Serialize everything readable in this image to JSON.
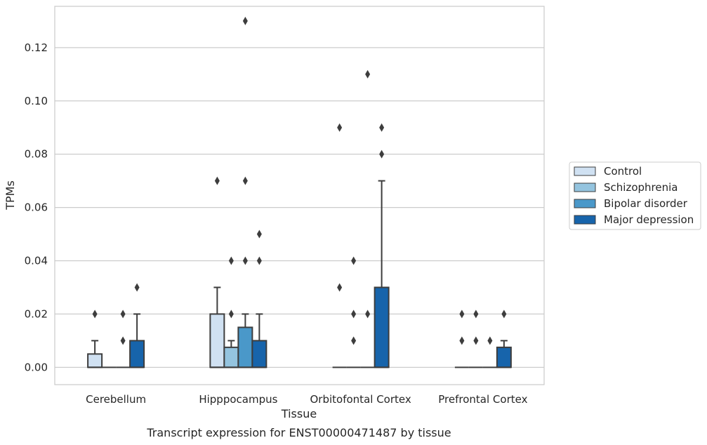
{
  "chart_data": {
    "type": "box",
    "xlabel": "Tissue",
    "ylabel": "TPMs",
    "caption": "Transcript expression for ENST00000471487 by tissue",
    "ylim": [
      -0.0065,
      0.1355
    ],
    "yticks": [
      "0.00",
      "0.02",
      "0.04",
      "0.06",
      "0.08",
      "0.10",
      "0.12"
    ],
    "ytick_values": [
      0,
      0.02,
      0.04,
      0.06,
      0.08,
      0.1,
      0.12
    ],
    "grid": true,
    "legend_position": "right",
    "categories": [
      "Cerebellum",
      "Hipppocampus",
      "Orbitofontal Cortex",
      "Prefrontal Cortex"
    ],
    "series": [
      {
        "name": "Control",
        "color": "#d0e1f2",
        "boxes": [
          {
            "q1": 0,
            "median": 0,
            "q3": 0.005,
            "whisker_low": 0,
            "whisker_high": 0.01,
            "outliers": [
              0.02
            ]
          },
          {
            "q1": 0,
            "median": 0,
            "q3": 0.02,
            "whisker_low": 0,
            "whisker_high": 0.03,
            "outliers": [
              0.07
            ]
          },
          {
            "q1": 0,
            "median": 0,
            "q3": 0,
            "whisker_low": 0,
            "whisker_high": 0,
            "outliers": [
              0.09,
              0.03
            ]
          },
          {
            "q1": 0,
            "median": 0,
            "q3": 0,
            "whisker_low": 0,
            "whisker_high": 0,
            "outliers": [
              0.02,
              0.01
            ]
          }
        ]
      },
      {
        "name": "Schizophrenia",
        "color": "#94c4df",
        "boxes": [
          {
            "q1": 0,
            "median": 0,
            "q3": 0,
            "whisker_low": 0,
            "whisker_high": 0,
            "outliers": []
          },
          {
            "q1": 0,
            "median": 0,
            "q3": 0.0075,
            "whisker_low": 0,
            "whisker_high": 0.01,
            "outliers": [
              0.04,
              0.02
            ]
          },
          {
            "q1": 0,
            "median": 0,
            "q3": 0,
            "whisker_low": 0,
            "whisker_high": 0,
            "outliers": [
              0.04,
              0.02,
              0.01
            ]
          },
          {
            "q1": 0,
            "median": 0,
            "q3": 0,
            "whisker_low": 0,
            "whisker_high": 0,
            "outliers": [
              0.02,
              0.01
            ]
          }
        ]
      },
      {
        "name": "Bipolar disorder",
        "color": "#4a98c9",
        "boxes": [
          {
            "q1": 0,
            "median": 0,
            "q3": 0,
            "whisker_low": 0,
            "whisker_high": 0,
            "outliers": [
              0.02,
              0.01
            ]
          },
          {
            "q1": 0,
            "median": 0,
            "q3": 0.015,
            "whisker_low": 0,
            "whisker_high": 0.02,
            "outliers": [
              0.13,
              0.07,
              0.04
            ]
          },
          {
            "q1": 0,
            "median": 0,
            "q3": 0,
            "whisker_low": 0,
            "whisker_high": 0,
            "outliers": [
              0.11,
              0.02
            ]
          },
          {
            "q1": 0,
            "median": 0,
            "q3": 0,
            "whisker_low": 0,
            "whisker_high": 0,
            "outliers": [
              0.01
            ]
          }
        ]
      },
      {
        "name": "Major depression",
        "color": "#1764ab",
        "boxes": [
          {
            "q1": 0,
            "median": 0,
            "q3": 0.01,
            "whisker_low": 0,
            "whisker_high": 0.02,
            "outliers": [
              0.03
            ]
          },
          {
            "q1": 0,
            "median": 0,
            "q3": 0.01,
            "whisker_low": 0,
            "whisker_high": 0.02,
            "outliers": [
              0.05,
              0.04
            ]
          },
          {
            "q1": 0,
            "median": 0,
            "q3": 0.03,
            "whisker_low": 0,
            "whisker_high": 0.07,
            "outliers": [
              0.09,
              0.08
            ]
          },
          {
            "q1": 0,
            "median": 0,
            "q3": 0.0075,
            "whisker_low": 0,
            "whisker_high": 0.01,
            "outliers": [
              0.02
            ]
          }
        ]
      }
    ],
    "colors": {
      "grid": "#cccccc",
      "box_edge": "#3d3d3d",
      "text": "#262626"
    }
  }
}
